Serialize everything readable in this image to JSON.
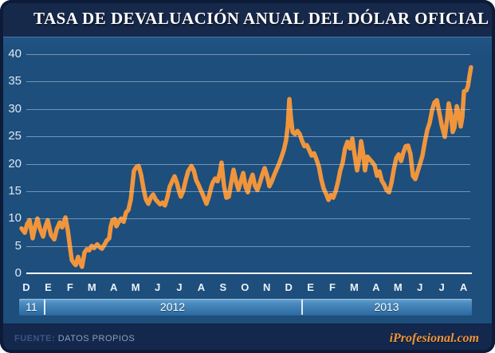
{
  "header": {
    "title": "TASA DE DEVALUACIÓN ANUAL DEL DÓLAR OFICIAL"
  },
  "footer": {
    "source_label": "FUENTE:",
    "source_value": "DATOS PROPIOS",
    "brand": "iProfesional.com"
  },
  "colors": {
    "line": "#F0953C",
    "card_bg": "#1D4E7C",
    "header_bg": "#17294B",
    "footer_bg": "#13284C",
    "frame": "#0C1B38",
    "gridline": "rgba(198,220,240,0.5)",
    "zero_line": "#FFFFFF",
    "band_top": "#6AA6D4",
    "band_bottom": "#2A689F"
  },
  "chart_data": {
    "type": "line",
    "title": "TASA DE DEVALUACIÓN ANUAL DEL DÓLAR OFICIAL",
    "xlabel": "",
    "ylabel": "",
    "ylim": [
      0,
      40
    ],
    "y_ticks": [
      0,
      5,
      10,
      15,
      20,
      25,
      30,
      35,
      40
    ],
    "grid": true,
    "legend": false,
    "x_tick_labels": [
      "D",
      "E",
      "F",
      "M",
      "A",
      "M",
      "J",
      "J",
      "A",
      "S",
      "O",
      "N",
      "D",
      "E",
      "F",
      "M",
      "A",
      "M",
      "J",
      "J",
      "A"
    ],
    "year_bands": [
      {
        "label": "11",
        "from": -0.33,
        "to": 0.8
      },
      {
        "label": "2012",
        "from": 0.8,
        "to": 12.58
      },
      {
        "label": "2013",
        "from": 12.58,
        "to": 20.38
      }
    ],
    "x_unit": "months from Dec-2011 tick",
    "series": [
      {
        "name": "Tasa de devaluación anual del dólar oficial (%)",
        "color": "#F0953C",
        "points": [
          [
            -0.22,
            8.2
          ],
          [
            -0.07,
            7.4
          ],
          [
            0.04,
            9.0
          ],
          [
            0.15,
            9.7
          ],
          [
            0.29,
            6.4
          ],
          [
            0.4,
            8.5
          ],
          [
            0.51,
            10.0
          ],
          [
            0.62,
            8.2
          ],
          [
            0.77,
            6.7
          ],
          [
            0.87,
            8.5
          ],
          [
            0.98,
            9.7
          ],
          [
            1.13,
            7.0
          ],
          [
            1.28,
            6.2
          ],
          [
            1.39,
            8.0
          ],
          [
            1.53,
            9.3
          ],
          [
            1.64,
            8.4
          ],
          [
            1.79,
            10.2
          ],
          [
            1.9,
            7.8
          ],
          [
            2.01,
            4.5
          ],
          [
            2.08,
            2.4
          ],
          [
            2.19,
            1.8
          ],
          [
            2.26,
            1.5
          ],
          [
            2.37,
            3.0
          ],
          [
            2.44,
            2.2
          ],
          [
            2.55,
            1.2
          ],
          [
            2.66,
            3.8
          ],
          [
            2.77,
            4.4
          ],
          [
            2.88,
            4.2
          ],
          [
            2.99,
            5.0
          ],
          [
            3.1,
            4.6
          ],
          [
            3.24,
            5.3
          ],
          [
            3.35,
            4.8
          ],
          [
            3.46,
            4.5
          ],
          [
            3.57,
            5.2
          ],
          [
            3.68,
            6.0
          ],
          [
            3.79,
            6.4
          ],
          [
            3.86,
            8.5
          ],
          [
            3.94,
            9.7
          ],
          [
            4.05,
            9.9
          ],
          [
            4.12,
            8.6
          ],
          [
            4.23,
            9.4
          ],
          [
            4.34,
            10.0
          ],
          [
            4.45,
            9.4
          ],
          [
            4.56,
            11.1
          ],
          [
            4.67,
            11.6
          ],
          [
            4.78,
            13.5
          ],
          [
            4.85,
            16.0
          ],
          [
            4.92,
            18.7
          ],
          [
            5.03,
            19.4
          ],
          [
            5.14,
            19.6
          ],
          [
            5.25,
            18.0
          ],
          [
            5.36,
            15.5
          ],
          [
            5.47,
            13.5
          ],
          [
            5.58,
            12.7
          ],
          [
            5.69,
            13.8
          ],
          [
            5.8,
            14.4
          ],
          [
            5.91,
            13.5
          ],
          [
            6.02,
            13.0
          ],
          [
            6.12,
            12.6
          ],
          [
            6.23,
            12.9
          ],
          [
            6.34,
            12.4
          ],
          [
            6.45,
            13.8
          ],
          [
            6.56,
            15.8
          ],
          [
            6.67,
            16.8
          ],
          [
            6.78,
            17.7
          ],
          [
            6.89,
            16.5
          ],
          [
            7.0,
            14.8
          ],
          [
            7.07,
            14.0
          ],
          [
            7.18,
            15.1
          ],
          [
            7.29,
            17.0
          ],
          [
            7.4,
            18.6
          ],
          [
            7.55,
            19.6
          ],
          [
            7.66,
            18.8
          ],
          [
            7.77,
            17.0
          ],
          [
            7.87,
            16.2
          ],
          [
            7.98,
            15.2
          ],
          [
            8.09,
            14.2
          ],
          [
            8.24,
            12.7
          ],
          [
            8.35,
            14.0
          ],
          [
            8.46,
            15.8
          ],
          [
            8.53,
            16.6
          ],
          [
            8.64,
            17.3
          ],
          [
            8.75,
            16.8
          ],
          [
            8.86,
            18.5
          ],
          [
            8.93,
            20.2
          ],
          [
            9.04,
            16.0
          ],
          [
            9.15,
            13.8
          ],
          [
            9.26,
            14.0
          ],
          [
            9.37,
            16.5
          ],
          [
            9.48,
            18.9
          ],
          [
            9.59,
            16.8
          ],
          [
            9.7,
            15.3
          ],
          [
            9.81,
            16.8
          ],
          [
            9.92,
            18.3
          ],
          [
            10.03,
            15.8
          ],
          [
            10.13,
            14.8
          ],
          [
            10.24,
            16.8
          ],
          [
            10.35,
            18.0
          ],
          [
            10.46,
            16.0
          ],
          [
            10.57,
            15.2
          ],
          [
            10.68,
            16.5
          ],
          [
            10.79,
            18.0
          ],
          [
            10.9,
            19.2
          ],
          [
            11.01,
            17.8
          ],
          [
            11.12,
            15.9
          ],
          [
            11.23,
            16.8
          ],
          [
            11.34,
            18.0
          ],
          [
            11.45,
            19.0
          ],
          [
            11.56,
            20.0
          ],
          [
            11.67,
            21.2
          ],
          [
            11.78,
            22.5
          ],
          [
            11.88,
            24.3
          ],
          [
            11.96,
            27.0
          ],
          [
            12.03,
            31.8
          ],
          [
            12.1,
            28.5
          ],
          [
            12.18,
            25.8
          ],
          [
            12.29,
            25.4
          ],
          [
            12.4,
            26.0
          ],
          [
            12.51,
            25.4
          ],
          [
            12.61,
            24.2
          ],
          [
            12.72,
            23.2
          ],
          [
            12.83,
            23.4
          ],
          [
            12.94,
            22.5
          ],
          [
            13.05,
            21.5
          ],
          [
            13.16,
            21.9
          ],
          [
            13.27,
            20.8
          ],
          [
            13.38,
            19.5
          ],
          [
            13.49,
            17.2
          ],
          [
            13.6,
            15.5
          ],
          [
            13.71,
            14.5
          ],
          [
            13.82,
            13.4
          ],
          [
            13.93,
            14.3
          ],
          [
            14.04,
            13.8
          ],
          [
            14.15,
            15.0
          ],
          [
            14.26,
            16.8
          ],
          [
            14.36,
            18.8
          ],
          [
            14.47,
            20.2
          ],
          [
            14.58,
            22.8
          ],
          [
            14.69,
            24.0
          ],
          [
            14.8,
            22.8
          ],
          [
            14.91,
            24.6
          ],
          [
            15.02,
            21.5
          ],
          [
            15.13,
            18.8
          ],
          [
            15.24,
            21.2
          ],
          [
            15.31,
            24.1
          ],
          [
            15.42,
            21.5
          ],
          [
            15.49,
            18.8
          ],
          [
            15.6,
            21.3
          ],
          [
            15.71,
            20.8
          ],
          [
            15.82,
            20.3
          ],
          [
            15.93,
            19.7
          ],
          [
            16.04,
            17.8
          ],
          [
            16.15,
            18.6
          ],
          [
            16.26,
            16.9
          ],
          [
            16.37,
            16.2
          ],
          [
            16.48,
            15.2
          ],
          [
            16.59,
            14.8
          ],
          [
            16.7,
            16.5
          ],
          [
            16.81,
            19.0
          ],
          [
            16.92,
            21.0
          ],
          [
            17.03,
            21.7
          ],
          [
            17.14,
            20.5
          ],
          [
            17.24,
            22.0
          ],
          [
            17.35,
            23.2
          ],
          [
            17.46,
            23.3
          ],
          [
            17.57,
            21.8
          ],
          [
            17.68,
            17.8
          ],
          [
            17.79,
            17.2
          ],
          [
            17.9,
            18.6
          ],
          [
            18.01,
            20.0
          ],
          [
            18.12,
            21.5
          ],
          [
            18.23,
            24.0
          ],
          [
            18.34,
            26.2
          ],
          [
            18.45,
            27.5
          ],
          [
            18.56,
            29.8
          ],
          [
            18.67,
            31.2
          ],
          [
            18.78,
            31.6
          ],
          [
            18.89,
            29.3
          ],
          [
            19.0,
            27.0
          ],
          [
            19.07,
            26.0
          ],
          [
            19.14,
            24.9
          ],
          [
            19.25,
            28.2
          ],
          [
            19.32,
            31.0
          ],
          [
            19.43,
            28.9
          ],
          [
            19.5,
            25.8
          ],
          [
            19.58,
            26.6
          ],
          [
            19.69,
            30.5
          ],
          [
            19.8,
            28.8
          ],
          [
            19.87,
            26.8
          ],
          [
            19.94,
            28.5
          ],
          [
            20.02,
            33.2
          ],
          [
            20.13,
            33.4
          ],
          [
            20.2,
            34.2
          ],
          [
            20.27,
            36.0
          ],
          [
            20.34,
            37.6
          ]
        ]
      }
    ]
  }
}
